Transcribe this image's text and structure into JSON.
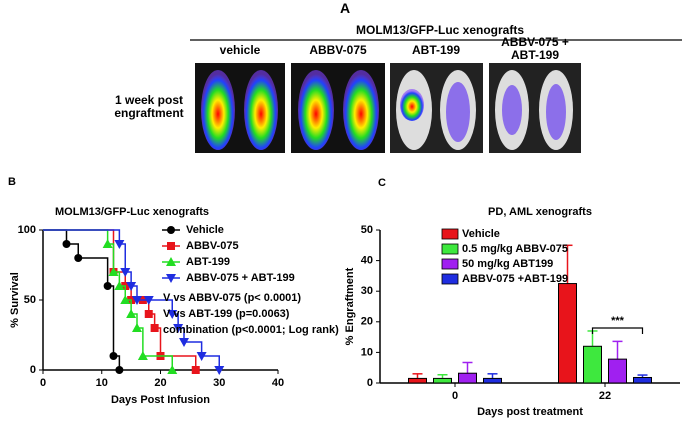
{
  "panel_a": {
    "label": "A",
    "title": "MOLM13/GFP-Luc  xenografts",
    "columns": [
      "vehicle",
      "ABBV-075",
      "ABT-199",
      "ABBV-075 + ABT-199"
    ],
    "row_label": "1 week post engraftment"
  },
  "chart_data": [
    {
      "type": "line",
      "label": "B",
      "title": "MOLM13/GFP-Luc  xenografts",
      "y_label": "% Survival",
      "x_label": "Days Post Infusion",
      "xlim": [
        0,
        40
      ],
      "xticks": [
        0,
        10,
        20,
        30,
        40
      ],
      "ylim": [
        0,
        100
      ],
      "yticks": [
        0,
        50,
        100
      ],
      "series": [
        {
          "name": "Vehicle",
          "color": "#000000",
          "marker": "circle",
          "x": [
            0,
            4,
            6,
            11,
            12,
            13
          ],
          "values": [
            100,
            90,
            80,
            60,
            10,
            0
          ]
        },
        {
          "name": "ABBV-075",
          "color": "#e8141b",
          "marker": "square",
          "x": [
            0,
            12,
            14,
            15,
            17,
            18,
            19,
            20,
            26
          ],
          "values": [
            100,
            70,
            60,
            50,
            50,
            40,
            30,
            10,
            0
          ]
        },
        {
          "name": "ABT-199",
          "color": "#22dd22",
          "marker": "triangle-up",
          "x": [
            0,
            11,
            12,
            13,
            14,
            15,
            16,
            17,
            22
          ],
          "values": [
            100,
            90,
            70,
            60,
            50,
            40,
            30,
            10,
            0
          ]
        },
        {
          "name": "ABBV-075 + ABT-199",
          "color": "#1f2de0",
          "marker": "triangle-down",
          "x": [
            0,
            13,
            14,
            15,
            16,
            18,
            22,
            23,
            24,
            27,
            30
          ],
          "values": [
            100,
            90,
            70,
            60,
            50,
            50,
            40,
            30,
            20,
            10,
            0
          ]
        }
      ],
      "annotations": [
        "V vs ABBV-075  (p< 0.0001)",
        "V vs ABT-199 (p=0.0063)",
        "combination (p<0.0001; Log rank)"
      ]
    },
    {
      "type": "bar",
      "label": "C",
      "title": "PD,  AML xenografts",
      "y_label": "% Engraftment",
      "x_label": "Days post treatment",
      "categories": [
        "0",
        "22"
      ],
      "ylim": [
        0,
        50
      ],
      "yticks": [
        0,
        10,
        20,
        30,
        40,
        50
      ],
      "series": [
        {
          "name": "Vehicle",
          "color": "#e8141b",
          "values": [
            1.5,
            32.5
          ],
          "errors": [
            1.5,
            12.5
          ]
        },
        {
          "name": "0.5 mg/kg ABBV-075",
          "color": "#3ee83e",
          "values": [
            1.5,
            12
          ],
          "errors": [
            1.2,
            5
          ]
        },
        {
          "name": "50 mg/kg ABT199",
          "color": "#a020f0",
          "values": [
            3.2,
            7.8
          ],
          "errors": [
            3.5,
            5.8
          ]
        },
        {
          "name": "ABBV-075 +ABT-199",
          "color": "#1f2de0",
          "values": [
            1.5,
            1.8
          ],
          "errors": [
            1.5,
            0.8
          ]
        }
      ],
      "annotation": "***"
    }
  ]
}
